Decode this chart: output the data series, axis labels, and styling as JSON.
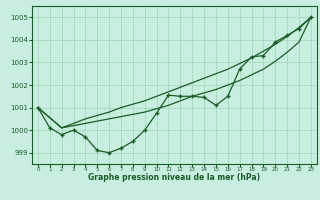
{
  "x": [
    0,
    1,
    2,
    3,
    4,
    5,
    6,
    7,
    8,
    9,
    10,
    11,
    12,
    13,
    14,
    15,
    16,
    17,
    18,
    19,
    20,
    21,
    22,
    23
  ],
  "y_main": [
    1001.0,
    1000.1,
    999.8,
    1000.0,
    999.7,
    999.1,
    999.0,
    999.2,
    999.5,
    1000.0,
    1000.75,
    1001.55,
    1001.5,
    1001.5,
    1001.45,
    1001.1,
    1001.5,
    1002.7,
    1003.25,
    1003.3,
    1003.9,
    1004.2,
    1004.5,
    1005.0
  ],
  "y_trend1": [
    1001.0,
    1000.55,
    1000.1,
    1000.2,
    1000.3,
    1000.4,
    1000.5,
    1000.6,
    1000.7,
    1000.8,
    1000.95,
    1001.1,
    1001.3,
    1001.5,
    1001.65,
    1001.8,
    1002.0,
    1002.2,
    1002.45,
    1002.7,
    1003.05,
    1003.45,
    1003.9,
    1005.0
  ],
  "y_trend2": [
    1001.0,
    1000.55,
    1000.1,
    1000.3,
    1000.5,
    1000.65,
    1000.8,
    1001.0,
    1001.15,
    1001.3,
    1001.5,
    1001.7,
    1001.9,
    1002.1,
    1002.3,
    1002.5,
    1002.7,
    1002.95,
    1003.2,
    1003.5,
    1003.8,
    1004.15,
    1004.55,
    1005.0
  ],
  "bg_color": "#c8eee0",
  "line_color": "#1a5c28",
  "grid_color": "#a0d4bc",
  "xlabel": "Graphe pression niveau de la mer (hPa)",
  "ylabel_ticks": [
    999,
    1000,
    1001,
    1002,
    1003,
    1004,
    1005
  ],
  "ylim": [
    998.5,
    1005.5
  ],
  "xlim": [
    -0.5,
    23.5
  ]
}
